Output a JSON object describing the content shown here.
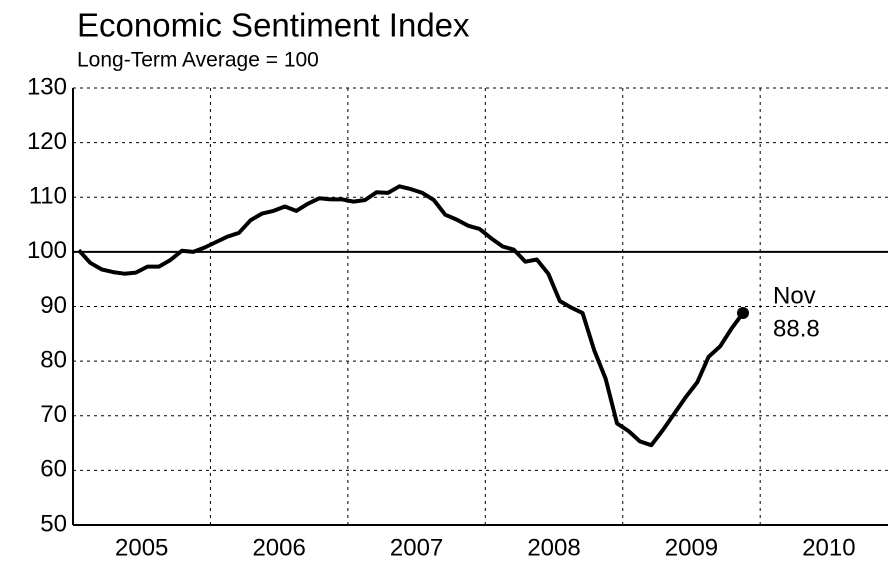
{
  "chart_data": {
    "type": "line",
    "title": "Economic Sentiment Index",
    "subtitle": "Long-Term Average = 100",
    "x": [
      2005.042,
      2005.125,
      2005.208,
      2005.292,
      2005.375,
      2005.458,
      2005.542,
      2005.625,
      2005.708,
      2005.792,
      2005.875,
      2005.958,
      2006.042,
      2006.125,
      2006.208,
      2006.292,
      2006.375,
      2006.458,
      2006.542,
      2006.625,
      2006.708,
      2006.792,
      2006.875,
      2006.958,
      2007.042,
      2007.125,
      2007.208,
      2007.292,
      2007.375,
      2007.458,
      2007.542,
      2007.625,
      2007.708,
      2007.792,
      2007.875,
      2007.958,
      2008.042,
      2008.125,
      2008.208,
      2008.292,
      2008.375,
      2008.458,
      2008.542,
      2008.625,
      2008.708,
      2008.792,
      2008.875,
      2008.958,
      2009.042,
      2009.125,
      2009.208,
      2009.292,
      2009.375,
      2009.458,
      2009.542,
      2009.625,
      2009.708,
      2009.792,
      2009.875
    ],
    "series": [
      {
        "name": "Economic Sentiment Index",
        "color": "#000000",
        "values": [
          100.3,
          98,
          96.8,
          96.3,
          96,
          96.2,
          97.3,
          97.3,
          98.5,
          100.2,
          100,
          100.8,
          101.8,
          102.8,
          103.5,
          105.8,
          107,
          107.5,
          108.3,
          107.5,
          108.8,
          109.8,
          109.6,
          109.6,
          109.2,
          109.5,
          110.9,
          110.8,
          112,
          111.5,
          110.8,
          109.5,
          106.8,
          105.9,
          104.8,
          104.2,
          102.5,
          101,
          100.4,
          98.2,
          98.6,
          96,
          91,
          89.8,
          88.8,
          82,
          76.8,
          68.6,
          67.2,
          65.3,
          64.6,
          67.4,
          70.4,
          73.4,
          76.1,
          80.8,
          82.7,
          86,
          88.8
        ]
      }
    ],
    "reference_line": 100,
    "annotation": {
      "month": "Nov",
      "value": "88.8"
    },
    "xlim": [
      2005,
      2010.93
    ],
    "xticks": [
      2005,
      2006,
      2007,
      2008,
      2009,
      2010
    ],
    "ylim": [
      50,
      130
    ],
    "yticks": [
      50,
      60,
      70,
      80,
      90,
      100,
      110,
      120,
      130
    ],
    "grid": true
  }
}
